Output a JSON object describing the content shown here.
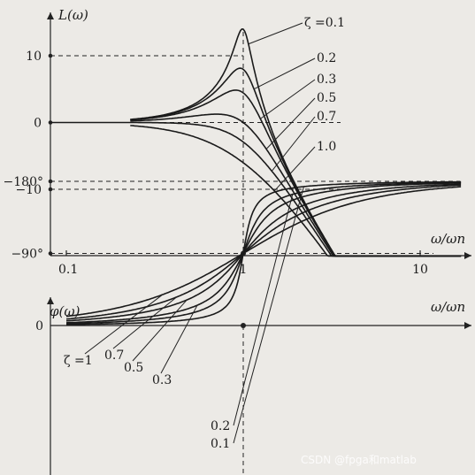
{
  "chart_data": [
    {
      "type": "line",
      "ylabel": "L(ω)",
      "xlabel": "ω/ωn",
      "x_scale": "log",
      "xlim": [
        0.1,
        20
      ],
      "ylim": [
        -20,
        15
      ],
      "x_ticks": [
        {
          "value": 0.1,
          "label": "0.1"
        },
        {
          "value": 1,
          "label": "1"
        },
        {
          "value": 10,
          "label": "10"
        }
      ],
      "y_ticks": [
        {
          "value": 10,
          "label": "10"
        },
        {
          "value": 0,
          "label": "0"
        },
        {
          "value": -10,
          "label": "-10"
        }
      ],
      "grid": "dashed reference lines at y = 10, 0, -10 and x = 1",
      "zeta_prefix": "ζ =",
      "series": [
        {
          "name": "0.1",
          "zeta": 0.1
        },
        {
          "name": "0.2",
          "zeta": 0.2
        },
        {
          "name": "0.3",
          "zeta": 0.3
        },
        {
          "name": "0.5",
          "zeta": 0.5
        },
        {
          "name": "0.7",
          "zeta": 0.7
        },
        {
          "name": "1.0",
          "zeta": 1.0
        }
      ]
    },
    {
      "type": "line",
      "ylabel": "φ(ω)",
      "xlabel": "ω/ωn",
      "x_scale": "log",
      "xlim": [
        0.1,
        20
      ],
      "ylim": [
        -180,
        0
      ],
      "y_ticks": [
        {
          "value": 0,
          "label": "0"
        },
        {
          "value": -90,
          "label": "-90°"
        },
        {
          "value": -180,
          "label": "-180°"
        }
      ],
      "grid": "dashed reference lines at y = -90, -180 and x = 1",
      "zeta_prefix": "ζ =",
      "series": [
        {
          "name": "1",
          "zeta": 1.0
        },
        {
          "name": "0.7",
          "zeta": 0.7
        },
        {
          "name": "0.5",
          "zeta": 0.5
        },
        {
          "name": "0.3",
          "zeta": 0.3
        },
        {
          "name": "0.2",
          "zeta": 0.2
        },
        {
          "name": "0.1",
          "zeta": 0.1
        }
      ]
    }
  ],
  "watermark": "CSDN @fpga和matlab"
}
